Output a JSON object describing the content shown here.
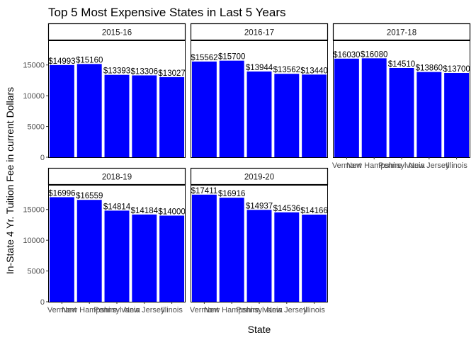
{
  "chart_data": {
    "type": "bar",
    "title": "Top 5 Most Expensive States in Last 5 Years",
    "xlabel": "State",
    "ylabel": "In-State 4 Yr. Tuition Fee in current Dollars",
    "ylim": [
      0,
      19000
    ],
    "yticks": [
      0,
      5000,
      10000,
      15000
    ],
    "bar_color": "#0000ff",
    "categories": [
      "Vermont",
      "New Hampshire",
      "Pennsylvania",
      "New Jersey",
      "Illinois"
    ],
    "facets": [
      {
        "name": "2015-16",
        "values": [
          14993,
          15160,
          13393,
          13306,
          13027
        ],
        "labels": [
          "$14993",
          "$15160",
          "$13393",
          "$13306",
          "$13027"
        ]
      },
      {
        "name": "2016-17",
        "values": [
          15562,
          15700,
          13944,
          13562,
          13440
        ],
        "labels": [
          "$15562",
          "$15700",
          "$13944",
          "$13562",
          "$13440"
        ]
      },
      {
        "name": "2017-18",
        "values": [
          16030,
          16080,
          14510,
          13860,
          13700
        ],
        "labels": [
          "$16030",
          "$16080",
          "$14510",
          "$13860",
          "$13700"
        ]
      },
      {
        "name": "2018-19",
        "values": [
          16996,
          16559,
          14814,
          14184,
          14000
        ],
        "labels": [
          "$16996",
          "$16559",
          "$14814",
          "$14184",
          "$14000"
        ]
      },
      {
        "name": "2019-20",
        "values": [
          17411,
          16916,
          14937,
          14536,
          14166
        ],
        "labels": [
          "$17411",
          "$16916",
          "$14937",
          "$14536",
          "$14166"
        ]
      }
    ]
  }
}
